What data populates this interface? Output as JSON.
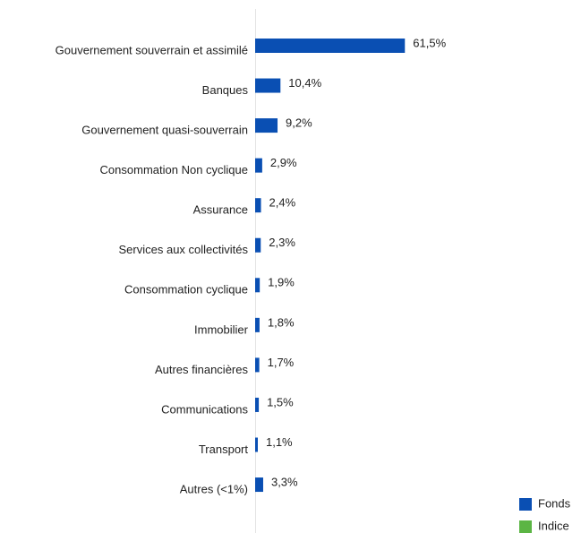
{
  "chart_data": {
    "type": "hbar",
    "categories": [
      "Gouvernement souverrain et assimilé",
      "Banques",
      "Gouvernement quasi-souverrain",
      "Consommation Non cyclique",
      "Assurance",
      "Services aux collectivités",
      "Consommation cyclique",
      "Immobilier",
      "Autres financières",
      "Communications",
      "Transport",
      "Autres (<1%)"
    ],
    "series": [
      {
        "name": "Fonds",
        "color": "#0a4fb3",
        "values": [
          61.5,
          10.4,
          9.2,
          2.9,
          2.4,
          2.3,
          1.9,
          1.8,
          1.7,
          1.5,
          1.1,
          3.3
        ],
        "value_labels": [
          "61,5%",
          "10,4%",
          "9,2%",
          "2,9%",
          "2,4%",
          "2,3%",
          "1,9%",
          "1,8%",
          "1,7%",
          "1,5%",
          "1,1%",
          "3,3%"
        ]
      },
      {
        "name": "Indice",
        "color": "#5bb544",
        "values": [
          null,
          null,
          null,
          null,
          null,
          null,
          null,
          null,
          null,
          null,
          null,
          null
        ]
      }
    ],
    "xlim": [
      0,
      100
    ],
    "legend": "bottom-right"
  }
}
